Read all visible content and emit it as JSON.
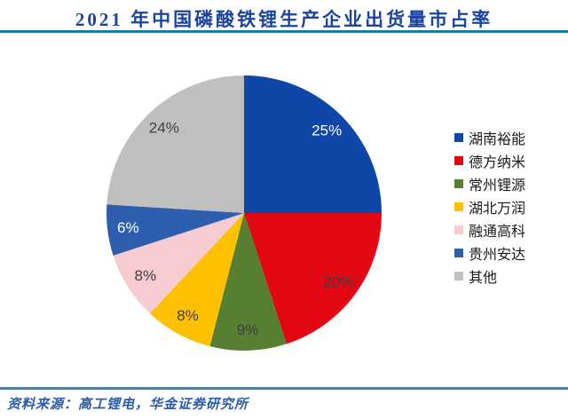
{
  "header": {
    "title": "2021 年中国磷酸铁锂生产企业出货量市占率"
  },
  "footer": {
    "source": "资料来源：高工锂电，华金证券研究所"
  },
  "colors": {
    "title": "#1B449E",
    "header_rule": "#2279A6",
    "footer_rule": "#4E81A0",
    "footer_text": "#2B5CA6",
    "label_dark": "#404040",
    "label_light": "#FFFFFF"
  },
  "chart_data": {
    "type": "pie",
    "title": "2021 年中国磷酸铁锂生产企业出货量市占率",
    "legend_position": "right",
    "direction": "clockwise",
    "start_angle_deg": 0,
    "slices": [
      {
        "label": "湖南裕能",
        "value": 25,
        "pct_label": "25%",
        "color": "#0E47A8",
        "label_color": "#FFFFFF"
      },
      {
        "label": "德方纳米",
        "value": 20,
        "pct_label": "20%",
        "color": "#E30613",
        "label_color": "#404040"
      },
      {
        "label": "常州锂源",
        "value": 9,
        "pct_label": "9%",
        "color": "#567F32",
        "label_color": "#404040"
      },
      {
        "label": "湖北万润",
        "value": 8,
        "pct_label": "8%",
        "color": "#FFC000",
        "label_color": "#404040"
      },
      {
        "label": "融通高科",
        "value": 8,
        "pct_label": "8%",
        "color": "#F6CBD2",
        "label_color": "#404040"
      },
      {
        "label": "贵州安达",
        "value": 6,
        "pct_label": "6%",
        "color": "#2E5FAE",
        "label_color": "#FFFFFF"
      },
      {
        "label": "其他",
        "value": 24,
        "pct_label": "24%",
        "color": "#BFBFBF",
        "label_color": "#404040"
      }
    ]
  }
}
